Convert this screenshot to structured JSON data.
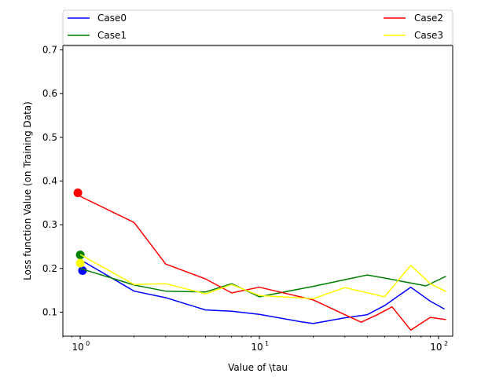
{
  "chart_data": {
    "type": "line",
    "xlabel": "Value of \\tau",
    "ylabel": "Loss function Value (on Training Data)",
    "x_scale": "log",
    "xlim": [
      0.8,
      120
    ],
    "ylim": [
      0.045,
      0.71
    ],
    "x_ticks": [
      {
        "value": 1,
        "label": "10",
        "exp": "0"
      },
      {
        "value": 10,
        "label": "10",
        "exp": "1"
      },
      {
        "value": 100,
        "label": "10",
        "exp": "2"
      }
    ],
    "y_ticks": [
      {
        "value": 0.1,
        "label": "0.1"
      },
      {
        "value": 0.2,
        "label": "0.2"
      },
      {
        "value": 0.3,
        "label": "0.3"
      },
      {
        "value": 0.4,
        "label": "0.4"
      },
      {
        "value": 0.5,
        "label": "0.5"
      },
      {
        "value": 0.6,
        "label": "0.6"
      },
      {
        "value": 0.7,
        "label": "0.7"
      }
    ],
    "grid": false,
    "legend_position": "top, above plot, 2 columns",
    "series": [
      {
        "name": "Case0",
        "color": "#0000ff",
        "marker": [
          1.03,
          0.195
        ],
        "points": [
          [
            1,
            0.22
          ],
          [
            2,
            0.148
          ],
          [
            3,
            0.133
          ],
          [
            5,
            0.105
          ],
          [
            7,
            0.102
          ],
          [
            10,
            0.095
          ],
          [
            17,
            0.078
          ],
          [
            20,
            0.074
          ],
          [
            30,
            0.087
          ],
          [
            40,
            0.094
          ],
          [
            50,
            0.115
          ],
          [
            70,
            0.157
          ],
          [
            90,
            0.125
          ],
          [
            108,
            0.107
          ]
        ]
      },
      {
        "name": "Case1",
        "color": "#008000",
        "marker": [
          1.0,
          0.231
        ],
        "points": [
          [
            1,
            0.2
          ],
          [
            2,
            0.162
          ],
          [
            3,
            0.148
          ],
          [
            5,
            0.146
          ],
          [
            7,
            0.165
          ],
          [
            10,
            0.135
          ],
          [
            20,
            0.159
          ],
          [
            40,
            0.185
          ],
          [
            50,
            0.178
          ],
          [
            85,
            0.16
          ],
          [
            110,
            0.182
          ]
        ]
      },
      {
        "name": "Case2",
        "color": "#ff0000",
        "marker": [
          0.97,
          0.373
        ],
        "points": [
          [
            1,
            0.365
          ],
          [
            2,
            0.305
          ],
          [
            3,
            0.21
          ],
          [
            5,
            0.176
          ],
          [
            7,
            0.144
          ],
          [
            10,
            0.157
          ],
          [
            20,
            0.128
          ],
          [
            30,
            0.094
          ],
          [
            37,
            0.077
          ],
          [
            45,
            0.093
          ],
          [
            55,
            0.112
          ],
          [
            70,
            0.059
          ],
          [
            90,
            0.088
          ],
          [
            110,
            0.083
          ]
        ]
      },
      {
        "name": "Case3",
        "color": "#ffff00",
        "marker": [
          1.0,
          0.212
        ],
        "points": [
          [
            1,
            0.232
          ],
          [
            2,
            0.163
          ],
          [
            3,
            0.165
          ],
          [
            5,
            0.142
          ],
          [
            7,
            0.163
          ],
          [
            10,
            0.138
          ],
          [
            20,
            0.131
          ],
          [
            30,
            0.156
          ],
          [
            50,
            0.135
          ],
          [
            70,
            0.207
          ],
          [
            90,
            0.165
          ],
          [
            110,
            0.147
          ]
        ]
      }
    ]
  },
  "legend": {
    "entries": [
      {
        "label": "Case0",
        "color": "#0000ff"
      },
      {
        "label": "Case1",
        "color": "#008000"
      },
      {
        "label": "Case2",
        "color": "#ff0000"
      },
      {
        "label": "Case3",
        "color": "#ffff00"
      }
    ]
  }
}
